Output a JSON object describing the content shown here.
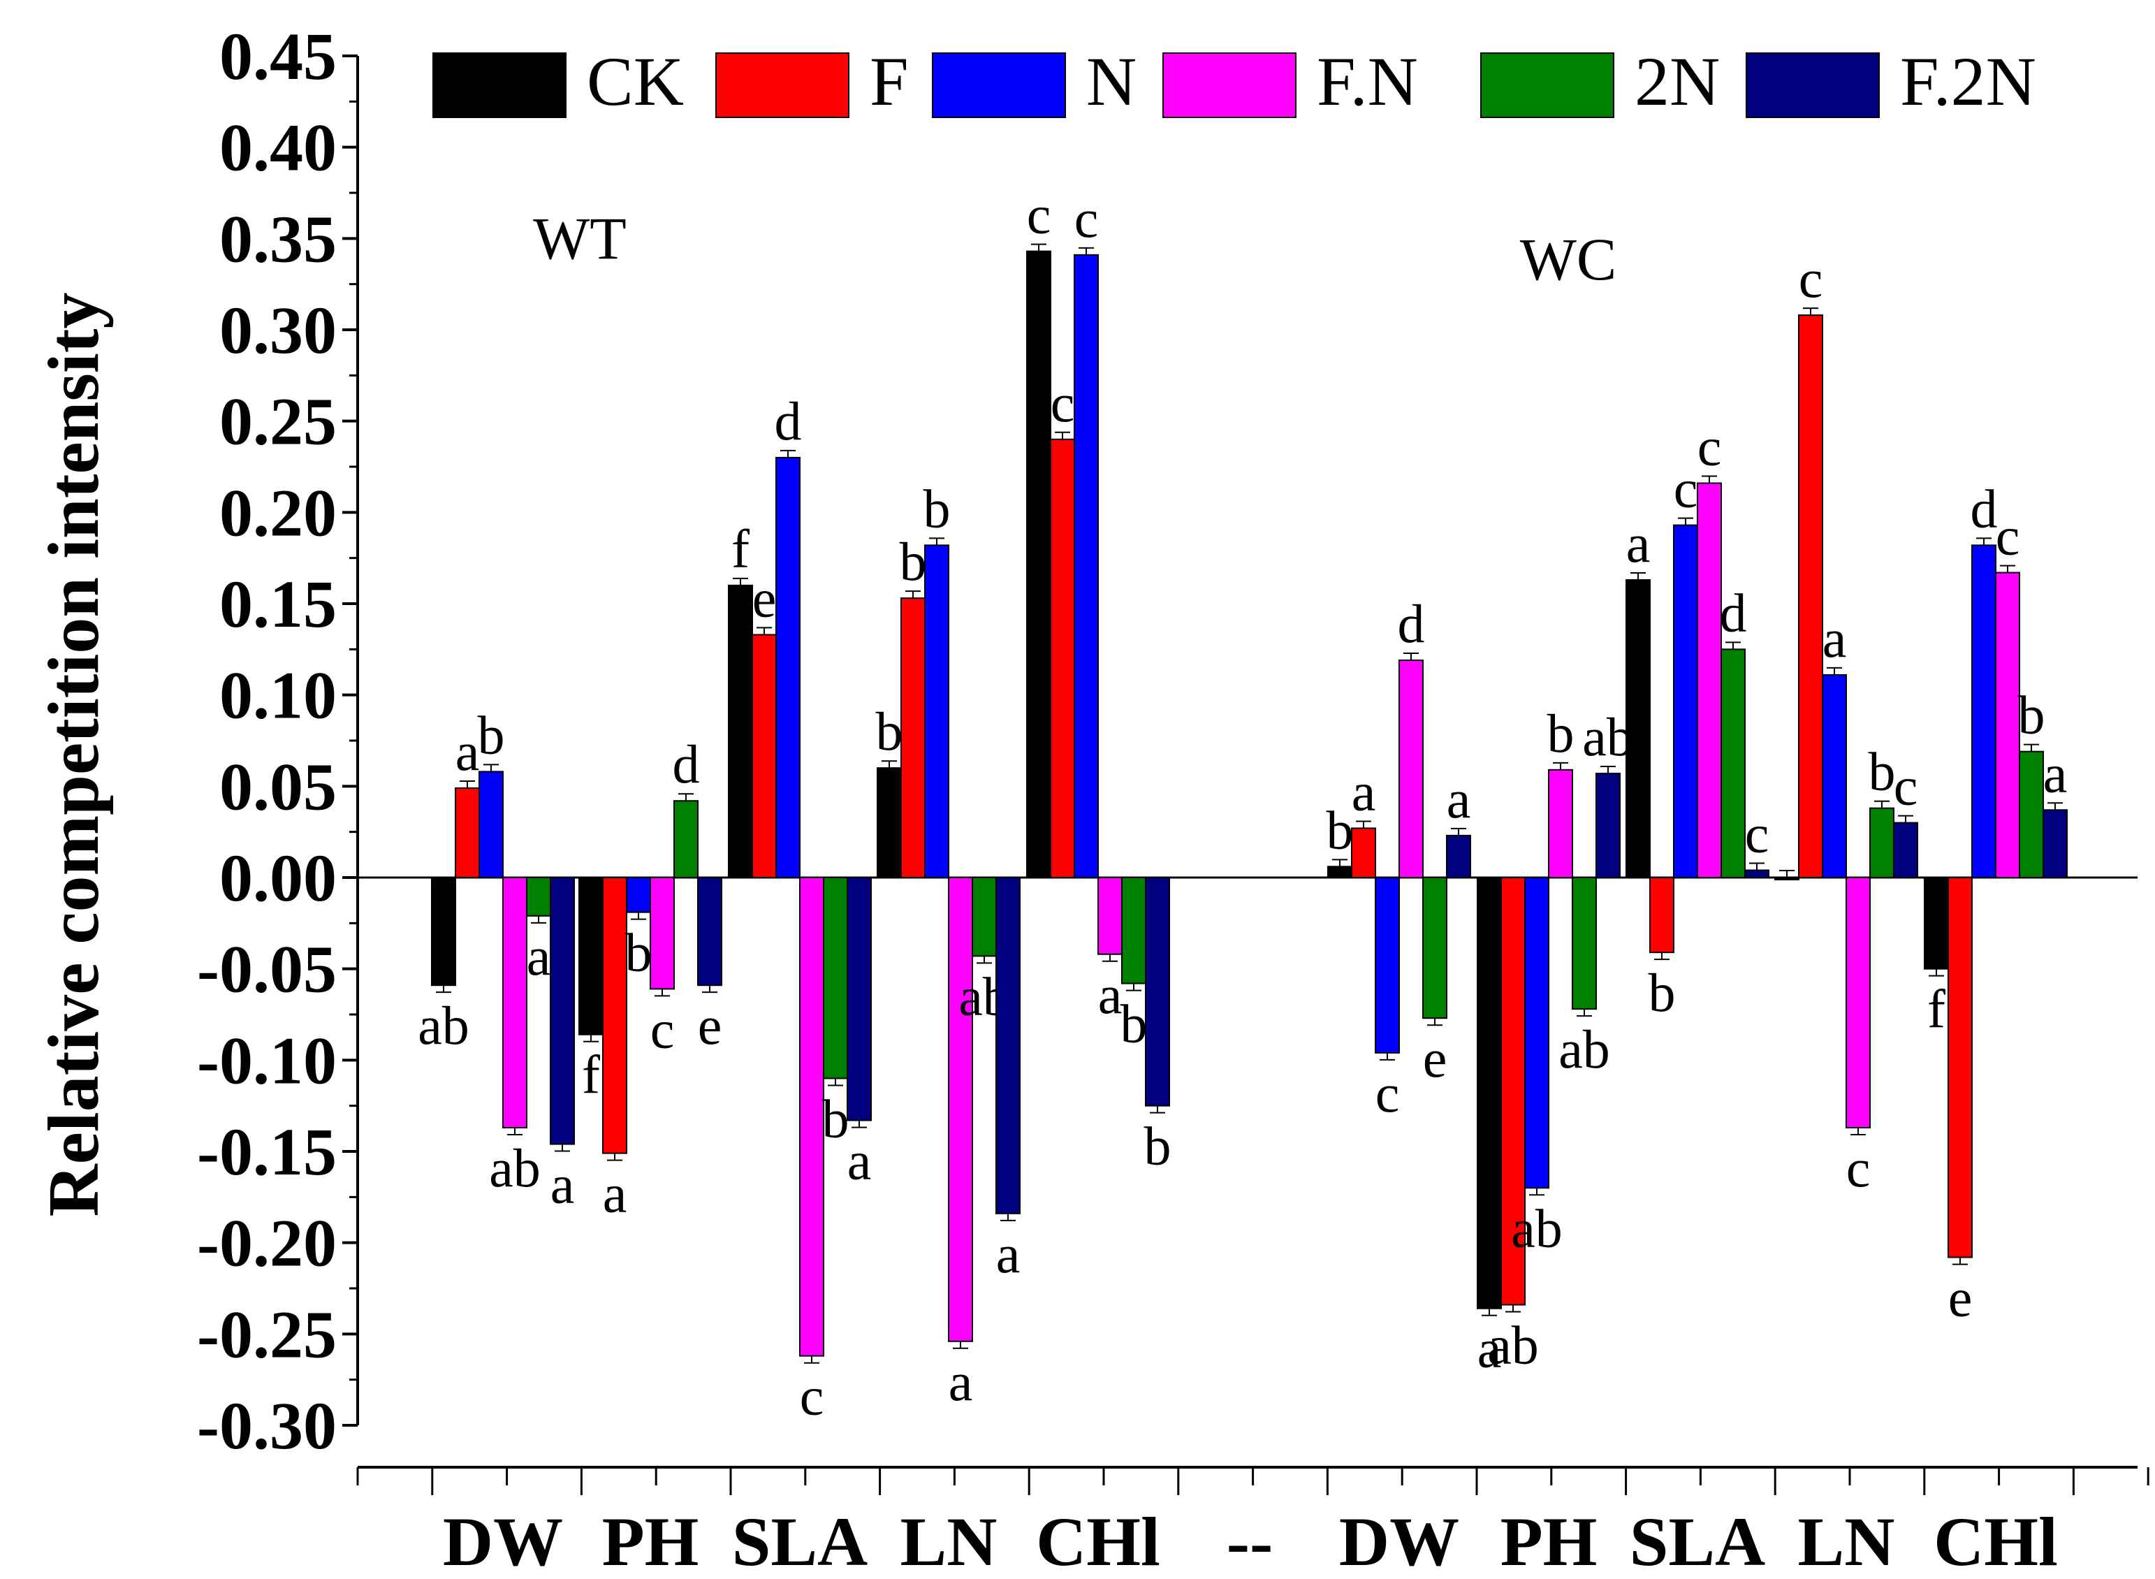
{
  "chart_data": {
    "type": "bar",
    "ylabel": "Relative competition intensity",
    "ylim": [
      -0.3,
      0.45
    ],
    "yticks": [
      "0.45",
      "0.40",
      "0.35",
      "0.30",
      "0.25",
      "0.20",
      "0.15",
      "0.10",
      "0.05",
      "0.00",
      "-0.05",
      "-0.10",
      "-0.15",
      "-0.20",
      "-0.25",
      "-0.30"
    ],
    "categories": [
      "DW",
      "PH",
      "SLA",
      "LN",
      "CHl",
      "--",
      "DW",
      "PH",
      "SLA",
      "LN",
      "CHl"
    ],
    "panels": [
      "WT",
      "WC"
    ],
    "series": [
      {
        "name": "CK",
        "color": "#000000",
        "values": [
          -0.059,
          -0.086,
          0.16,
          0.06,
          0.343,
          null,
          0.006,
          -0.236,
          0.163,
          0.0,
          -0.05
        ],
        "letters": [
          "ab",
          "f",
          "f",
          "b",
          "c",
          null,
          "b",
          "a",
          "a",
          "",
          "f"
        ]
      },
      {
        "name": "F",
        "color": "#ff0000",
        "values": [
          0.049,
          -0.151,
          0.133,
          0.153,
          0.24,
          null,
          0.027,
          -0.234,
          -0.041,
          0.308,
          -0.208
        ],
        "letters": [
          "a",
          "a",
          "e",
          "b",
          "c",
          null,
          "a",
          "ab",
          "b",
          "c",
          "e"
        ]
      },
      {
        "name": "N",
        "color": "#0000ff",
        "values": [
          0.058,
          -0.019,
          0.23,
          0.182,
          0.341,
          null,
          -0.096,
          -0.17,
          0.193,
          0.111,
          0.182
        ],
        "letters": [
          "b",
          "b",
          "d",
          "b",
          "c",
          null,
          "c",
          "ab",
          "c",
          "a",
          "d"
        ]
      },
      {
        "name": "F.N",
        "color": "#ff00ff",
        "values": [
          -0.137,
          -0.061,
          -0.262,
          -0.254,
          -0.042,
          null,
          0.119,
          0.059,
          0.216,
          -0.137,
          0.167
        ],
        "letters": [
          "ab",
          "c",
          "c",
          "a",
          "a",
          null,
          "d",
          "b",
          "c",
          "c",
          "c"
        ]
      },
      {
        "name": "2N",
        "color": "#008000",
        "values": [
          -0.021,
          0.042,
          -0.11,
          -0.043,
          -0.058,
          null,
          -0.077,
          -0.072,
          0.125,
          0.038,
          0.069
        ],
        "letters": [
          "a",
          "d",
          "b",
          "ab",
          "b",
          null,
          "e",
          "ab",
          "d",
          "b",
          "b"
        ]
      },
      {
        "name": "F.2N",
        "color": "#000080",
        "values": [
          -0.146,
          -0.059,
          -0.133,
          -0.184,
          -0.125,
          null,
          0.023,
          0.057,
          0.004,
          0.03,
          0.037
        ],
        "letters": [
          "a",
          "e",
          "a",
          "a",
          "b",
          null,
          "a",
          "ab",
          "c",
          "c",
          "a"
        ]
      }
    ]
  }
}
